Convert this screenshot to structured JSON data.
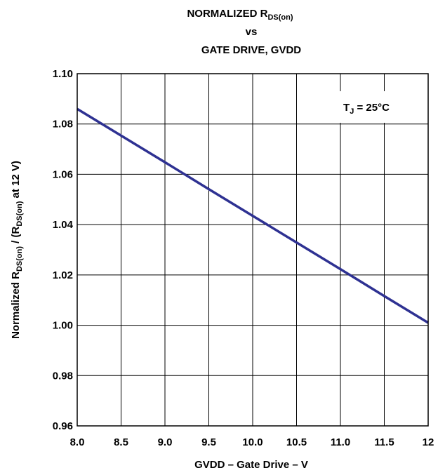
{
  "chart_data": {
    "type": "line",
    "title": {
      "line1_main": "NORMALIZED R",
      "line1_sub": "DS(on)",
      "line2": "vs",
      "line3": "GATE DRIVE, GVDD"
    },
    "xlabel": "GVDD – Gate Drive – V",
    "ylabel": {
      "part1": "Normalized R",
      "sub1": "DS(on)",
      "part2": " / (R",
      "sub2": "DS(on)",
      "part3": " at 12 V)"
    },
    "annotation": {
      "main": "T",
      "sub": "J",
      "rest": " = 25°C"
    },
    "xlim": [
      8.0,
      12.0
    ],
    "ylim": [
      0.96,
      1.1
    ],
    "x_ticks": [
      8.0,
      8.5,
      9.0,
      9.5,
      10.0,
      10.5,
      11.0,
      11.5,
      12.0
    ],
    "x_tick_labels": [
      "8.0",
      "8.5",
      "9.0",
      "9.5",
      "10.0",
      "10.5",
      "11.0",
      "11.5",
      "12"
    ],
    "y_ticks": [
      0.96,
      0.98,
      1.0,
      1.02,
      1.04,
      1.06,
      1.08,
      1.1
    ],
    "y_tick_labels": [
      "0.96",
      "0.98",
      "1.00",
      "1.02",
      "1.04",
      "1.06",
      "1.08",
      "1.10"
    ],
    "grid": true,
    "series_color": "#2e3192",
    "series": [
      {
        "x": [
          8.0,
          8.5,
          9.0,
          9.5,
          10.0,
          10.5,
          11.0,
          11.5,
          12.0
        ],
        "values": [
          1.086,
          1.0754,
          1.0648,
          1.0541,
          1.0435,
          1.0329,
          1.0223,
          1.0116,
          1.001
        ]
      }
    ]
  }
}
